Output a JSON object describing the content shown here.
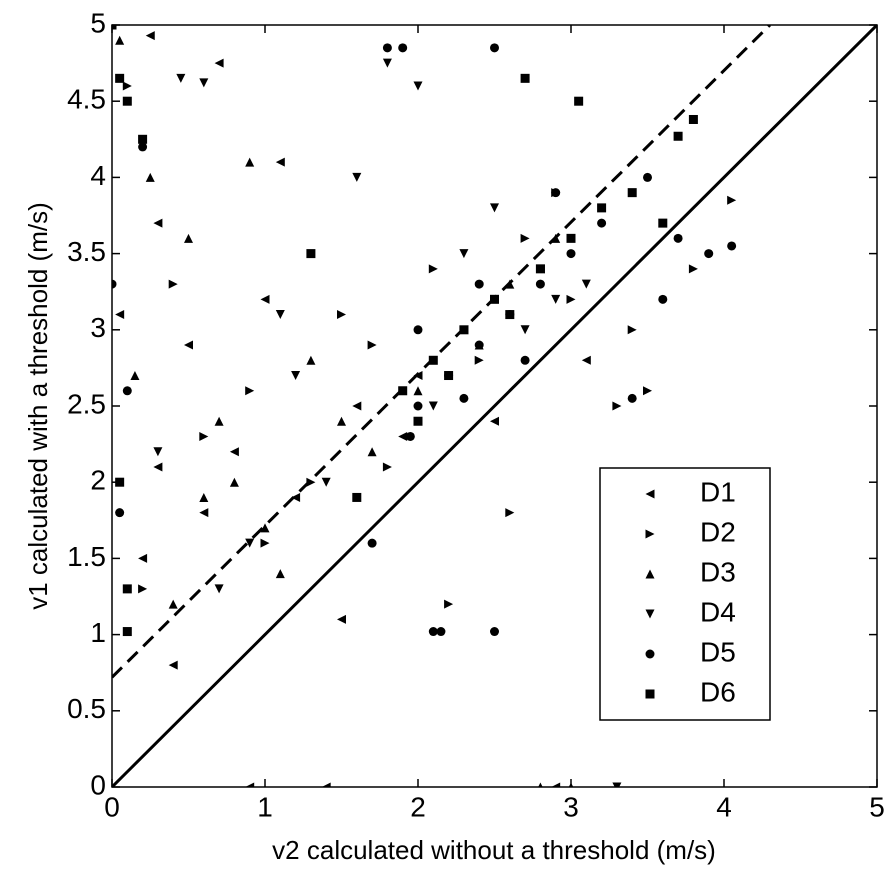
{
  "chart_data": {
    "type": "scatter",
    "x_label": "v2 calculated without a threshold (m/s)",
    "y_label": "v1 calculated with a threshold (m/s)",
    "xlim": [
      0,
      5
    ],
    "ylim": [
      0,
      5
    ],
    "xticks": [
      0,
      1,
      2,
      3,
      4,
      5
    ],
    "yticks": [
      0,
      0.5,
      1,
      1.5,
      2,
      2.5,
      3,
      3.5,
      4,
      4.5,
      5
    ],
    "legend": "lower right",
    "lines": [
      {
        "x": [
          0,
          5
        ],
        "y": [
          0,
          5
        ],
        "dash": false
      },
      {
        "x": [
          0,
          4.3
        ],
        "y": [
          0.72,
          5
        ],
        "dash": true
      }
    ],
    "series": [
      {
        "name": "D1",
        "marker": "left",
        "color": "#000000",
        "x": [
          0.25,
          0.7,
          1.1,
          0.3,
          0.5,
          0.8,
          1.2,
          1.6,
          2.0,
          2.3,
          1.5,
          0.4,
          2.8,
          3.1,
          1.9,
          0.2,
          0.6,
          1.0,
          2.5,
          0.9,
          1.4,
          0.05,
          2.9,
          0.3
        ],
        "y": [
          4.93,
          4.75,
          4.1,
          3.7,
          2.9,
          2.2,
          1.9,
          2.5,
          2.7,
          3.0,
          1.1,
          0.8,
          3.4,
          2.8,
          2.3,
          1.5,
          1.8,
          3.2,
          2.4,
          0,
          0,
          3.1,
          0,
          2.1
        ]
      },
      {
        "name": "D2",
        "marker": "right",
        "color": "#000000",
        "x": [
          0.1,
          0.4,
          0.9,
          1.3,
          1.7,
          2.1,
          2.4,
          2.7,
          3.0,
          3.3,
          3.5,
          4.05,
          2.2,
          1.0,
          0.6,
          2.6,
          3.8,
          1.8,
          2.9,
          3.4,
          0.2,
          1.5
        ],
        "y": [
          4.6,
          3.3,
          2.6,
          2.0,
          2.9,
          3.4,
          2.8,
          3.6,
          3.2,
          2.5,
          2.6,
          3.85,
          1.2,
          1.6,
          2.3,
          1.8,
          3.4,
          2.1,
          3.9,
          3.0,
          1.3,
          3.1
        ]
      },
      {
        "name": "D3",
        "marker": "up",
        "color": "#000000",
        "x": [
          0.05,
          0.25,
          0.5,
          0.7,
          1.0,
          1.3,
          0.4,
          0.9,
          1.7,
          2.0,
          2.4,
          2.8,
          3.0,
          0.15,
          0.6,
          1.1,
          2.6,
          2.9,
          0.8,
          1.5
        ],
        "y": [
          4.9,
          4.0,
          3.6,
          2.4,
          1.7,
          2.8,
          1.2,
          4.1,
          2.2,
          2.6,
          2.9,
          0,
          0,
          2.7,
          1.9,
          1.4,
          3.3,
          3.6,
          2.0,
          2.4
        ]
      },
      {
        "name": "D4",
        "marker": "down",
        "color": "#000000",
        "x": [
          0.45,
          0.6,
          1.1,
          1.8,
          2.0,
          1.6,
          2.3,
          2.7,
          1.4,
          0.3,
          0.9,
          2.1,
          3.3,
          2.9,
          1.2,
          0.7,
          2.5,
          3.1
        ],
        "y": [
          4.65,
          4.62,
          3.1,
          4.75,
          4.6,
          4.0,
          3.5,
          3.0,
          2.0,
          2.2,
          1.6,
          2.5,
          0,
          3.2,
          2.7,
          1.3,
          3.8,
          3.3
        ]
      },
      {
        "name": "D5",
        "marker": "circle",
        "color": "#000000",
        "x": [
          0,
          0.1,
          0.2,
          1.8,
          1.9,
          2.5,
          2.0,
          2.2,
          2.4,
          2.6,
          2.8,
          3.0,
          3.2,
          3.5,
          3.7,
          3.9,
          4.05,
          3.4,
          2.1,
          1.7,
          2.15,
          2.5,
          1.95,
          2.3,
          2.7,
          3.6,
          2.9,
          2.0,
          2.4,
          0.05
        ],
        "y": [
          3.3,
          2.6,
          4.2,
          4.85,
          4.85,
          4.85,
          2.5,
          2.7,
          2.9,
          3.1,
          3.3,
          3.5,
          3.7,
          4.0,
          3.6,
          3.5,
          3.55,
          2.55,
          1.02,
          1.6,
          1.02,
          1.02,
          2.3,
          2.55,
          2.8,
          3.2,
          3.9,
          3.0,
          3.3,
          1.8
        ]
      },
      {
        "name": "D6",
        "marker": "square",
        "color": "#000000",
        "x": [
          0,
          0.05,
          0.1,
          0.1,
          0.2,
          2.7,
          3.05,
          3.8,
          3.7,
          1.3,
          0.1,
          1.9,
          2.1,
          2.3,
          2.5,
          2.8,
          3.0,
          3.2,
          3.4,
          1.6,
          2.0,
          2.6,
          2.2,
          0.05,
          3.6
        ],
        "y": [
          5.0,
          4.65,
          4.5,
          1.3,
          4.25,
          4.65,
          4.5,
          4.38,
          4.27,
          3.5,
          1.02,
          2.6,
          2.8,
          3.0,
          3.2,
          3.4,
          3.6,
          3.8,
          3.9,
          1.9,
          2.4,
          3.1,
          2.7,
          2.0,
          3.7
        ]
      }
    ]
  }
}
